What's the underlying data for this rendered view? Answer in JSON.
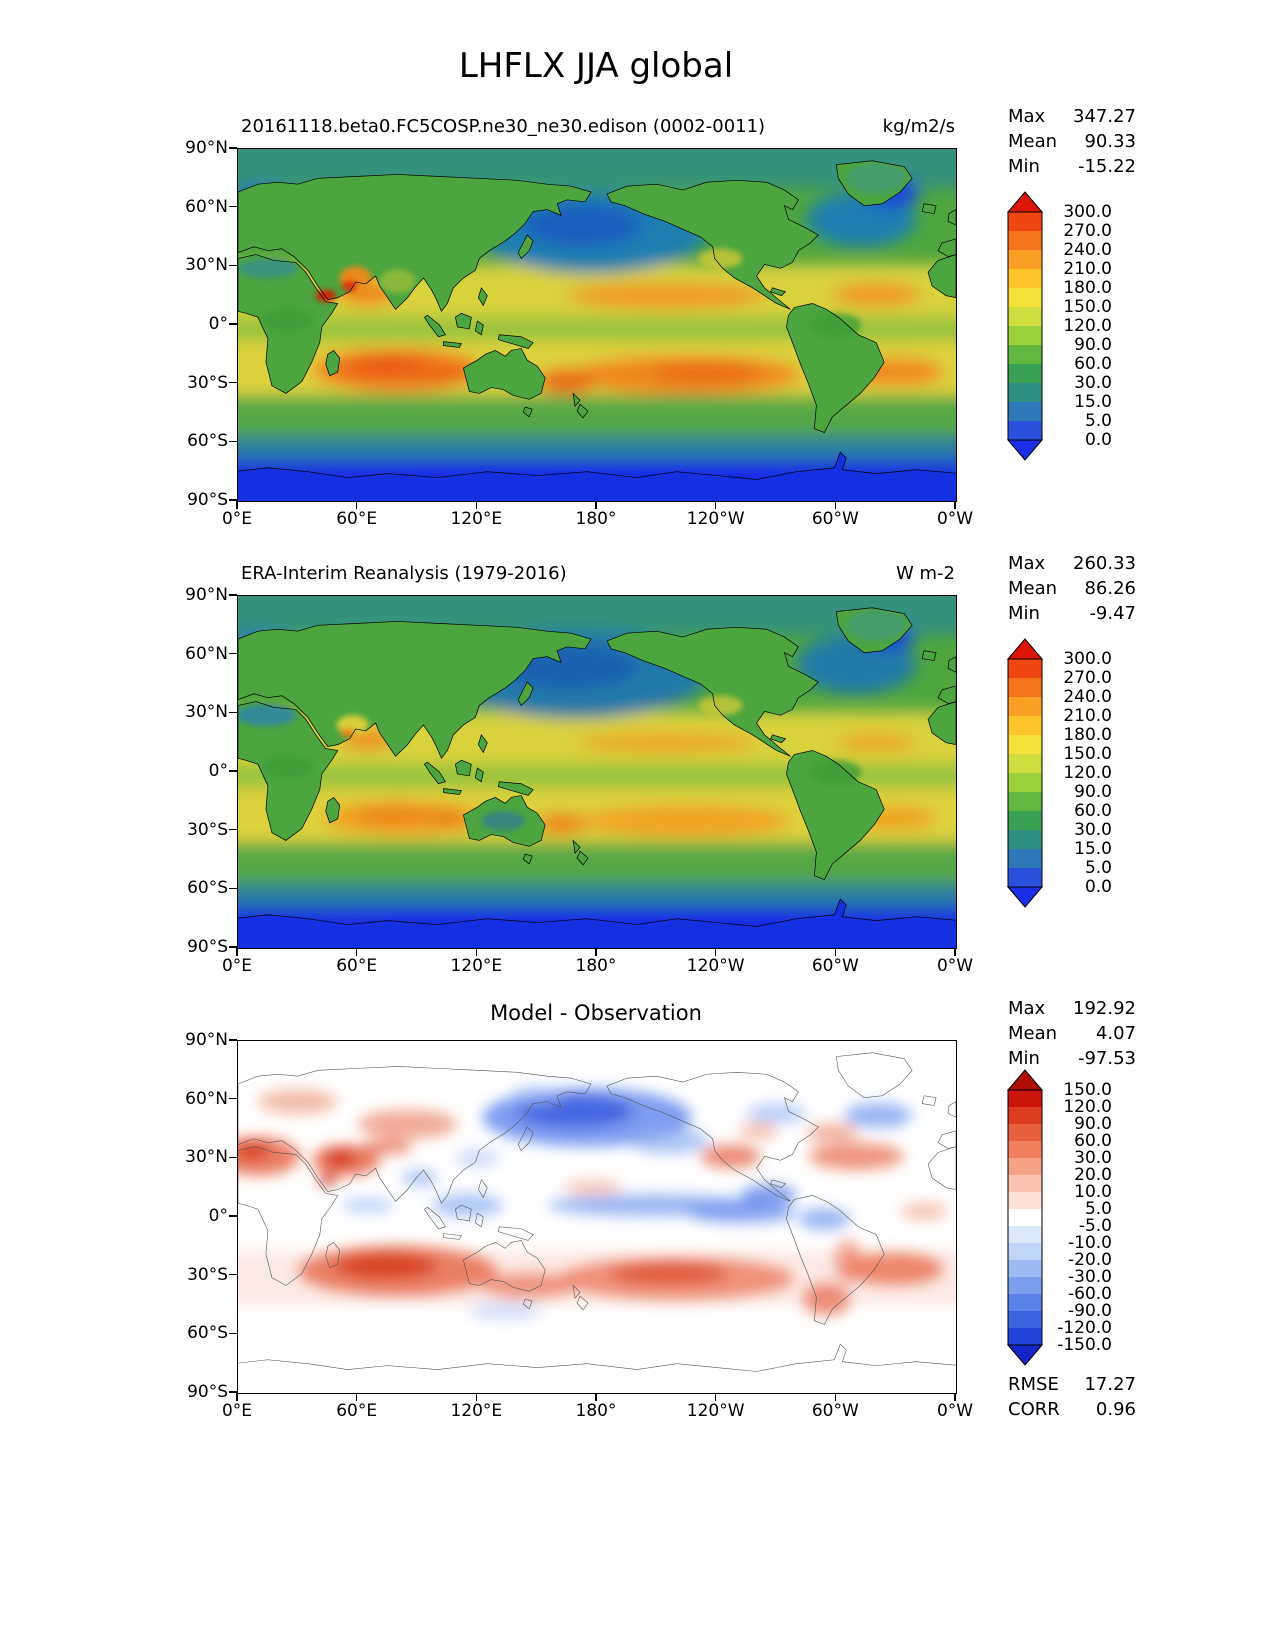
{
  "page_title": "LHFLX JJA global",
  "axes": {
    "lat_ticks": [
      "90°N",
      "60°N",
      "30°N",
      "0°",
      "30°S",
      "60°S",
      "90°S"
    ],
    "lon_ticks": [
      "0°E",
      "60°E",
      "120°E",
      "180°",
      "120°W",
      "60°W",
      "0°W"
    ]
  },
  "panels": [
    {
      "name": "model",
      "subtitle": "20161118.beta0.FC5COSP.ne30_ne30.edison (0002-0011)",
      "units": "kg/m2/s",
      "stats": {
        "max_label": "Max",
        "max_value": "347.27",
        "mean_label": "Mean",
        "mean_value": "90.33",
        "min_label": "Min",
        "min_value": "-15.22"
      },
      "colorbar": {
        "ticks": [
          "300.0",
          "270.0",
          "240.0",
          "210.0",
          "180.0",
          "150.0",
          "120.0",
          "90.0",
          "60.0",
          "30.0",
          "15.0",
          "5.0",
          "0.0"
        ],
        "segment_colors": [
          "#f04611",
          "#f4731c",
          "#fb9f24",
          "#fdc42d",
          "#f5e03b",
          "#cfdd3e",
          "#9ccf3c",
          "#62b83e",
          "#3aa054",
          "#2f8f80",
          "#2f78b8",
          "#2b50dc"
        ],
        "arrow_top_color": "#dd1606",
        "arrow_bottom_color": "#1b2fe8"
      }
    },
    {
      "name": "observation",
      "subtitle": "ERA-Interim Reanalysis (1979-2016)",
      "units": "W m-2",
      "stats": {
        "max_label": "Max",
        "max_value": "260.33",
        "mean_label": "Mean",
        "mean_value": "86.26",
        "min_label": "Min",
        "min_value": "-9.47"
      },
      "colorbar": {
        "ticks": [
          "300.0",
          "270.0",
          "240.0",
          "210.0",
          "180.0",
          "150.0",
          "120.0",
          "90.0",
          "60.0",
          "30.0",
          "15.0",
          "5.0",
          "0.0"
        ],
        "segment_colors": [
          "#f04611",
          "#f4731c",
          "#fb9f24",
          "#fdc42d",
          "#f5e03b",
          "#cfdd3e",
          "#9ccf3c",
          "#62b83e",
          "#3aa054",
          "#2f8f80",
          "#2f78b8",
          "#2b50dc"
        ],
        "arrow_top_color": "#dd1606",
        "arrow_bottom_color": "#1b2fe8"
      }
    },
    {
      "name": "difference",
      "subtitle": "Model - Observation",
      "units": "",
      "stats": {
        "max_label": "Max",
        "max_value": "192.92",
        "mean_label": "Mean",
        "mean_value": "4.07",
        "min_label": "Min",
        "min_value": "-97.53"
      },
      "colorbar": {
        "ticks": [
          "150.0",
          "120.0",
          "90.0",
          "60.0",
          "30.0",
          "20.0",
          "10.0",
          "5.0",
          "-5.0",
          "-10.0",
          "-20.0",
          "-30.0",
          "-60.0",
          "-90.0",
          "-120.0",
          "-150.0"
        ],
        "segment_colors": [
          "#c9150b",
          "#dc3d20",
          "#e85f3e",
          "#f08060",
          "#f5a287",
          "#f9c3b0",
          "#fce1d6",
          "#ffffff",
          "#dde8fb",
          "#c0d4f8",
          "#9dbcf4",
          "#7aa0ee",
          "#5a82e8",
          "#3c63e0",
          "#2342d8"
        ],
        "arrow_top_color": "#ad0d03",
        "arrow_bottom_color": "#1526c8"
      },
      "metrics": {
        "rmse_label": "RMSE",
        "rmse_value": "17.27",
        "corr_label": "CORR",
        "corr_value": "0.96"
      }
    }
  ],
  "chart_data": {
    "type": "heatmap",
    "subtype": "filled-contour-global-maps",
    "variable": "LHFLX",
    "season": "JJA",
    "region": "global",
    "title": "LHFLX JJA global",
    "projection": "equirectangular, longitude 0°E to 0°W (0-360), latitude 90°N to 90°S",
    "x_ticks": [
      "0°E",
      "60°E",
      "120°E",
      "180°",
      "120°W",
      "60°W",
      "0°W"
    ],
    "y_ticks": [
      "90°N",
      "60°N",
      "30°N",
      "0°",
      "30°S",
      "60°S",
      "90°S"
    ],
    "panels": [
      {
        "name": "model",
        "title": "20161118.beta0.FC5COSP.ne30_ne30.edison (0002-0011)",
        "units": "kg/m2/s",
        "max": 347.27,
        "mean": 90.33,
        "min": -15.22,
        "contour_levels": [
          0.0,
          5.0,
          15.0,
          30.0,
          60.0,
          90.0,
          120.0,
          150.0,
          180.0,
          210.0,
          240.0,
          270.0,
          300.0
        ],
        "colorbar_extend": "both"
      },
      {
        "name": "observation",
        "title": "ERA-Interim Reanalysis (1979-2016)",
        "units": "W m-2",
        "max": 260.33,
        "mean": 86.26,
        "min": -9.47,
        "contour_levels": [
          0.0,
          5.0,
          15.0,
          30.0,
          60.0,
          90.0,
          120.0,
          150.0,
          180.0,
          210.0,
          240.0,
          270.0,
          300.0
        ],
        "colorbar_extend": "both"
      },
      {
        "name": "difference",
        "title": "Model - Observation",
        "units": "",
        "max": 192.92,
        "mean": 4.07,
        "min": -97.53,
        "rmse": 17.27,
        "corr": 0.96,
        "contour_levels": [
          -150.0,
          -120.0,
          -90.0,
          -60.0,
          -30.0,
          -20.0,
          -10.0,
          -5.0,
          5.0,
          10.0,
          20.0,
          30.0,
          60.0,
          90.0,
          120.0,
          150.0
        ],
        "colorbar_extend": "both"
      }
    ],
    "legend_position": "right of each panel",
    "grid": false
  }
}
